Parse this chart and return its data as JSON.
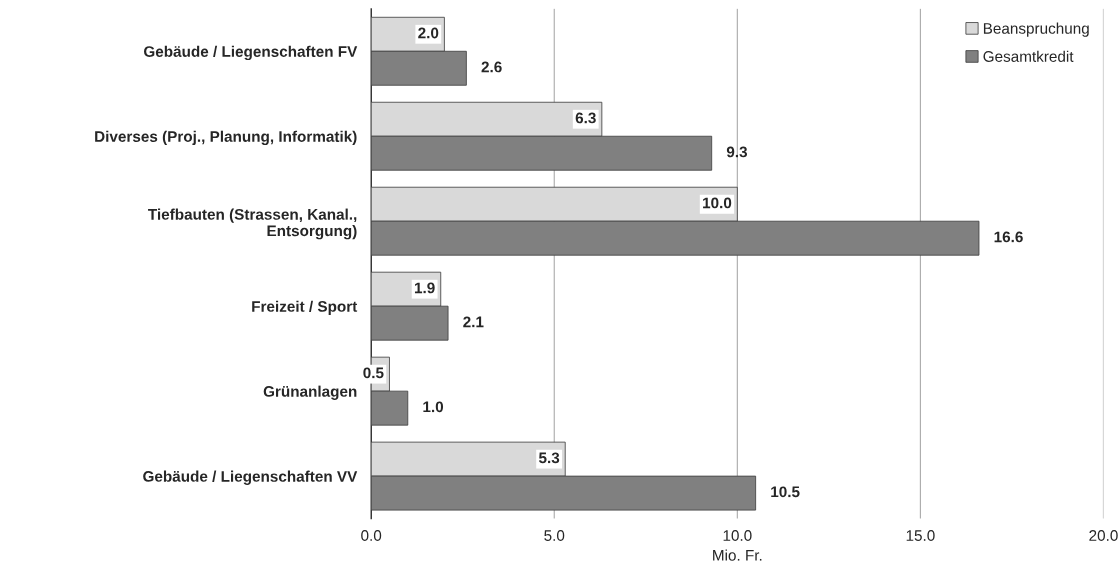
{
  "chart_data": {
    "type": "bar",
    "orientation": "horizontal",
    "xlabel": "Mio. Fr.",
    "categories": [
      "Gebäude / Liegenschaften FV",
      "Diverses (Proj., Planung, Informatik)",
      "Tiefbauten (Strassen, Kanal.,\nEntsorgung)",
      "Freizeit / Sport",
      "Grünanlagen",
      "Gebäude / Liegenschaften VV"
    ],
    "series": [
      {
        "name": "Beanspruchung",
        "color": "#d9d9d9",
        "values": [
          2.0,
          6.3,
          10.0,
          1.9,
          0.5,
          5.3
        ],
        "value_labels": [
          "2.0",
          "6.3",
          "10.0",
          "1.9",
          "0.5",
          "5.3"
        ]
      },
      {
        "name": "Gesamtkredit",
        "color": "#808080",
        "values": [
          2.6,
          9.3,
          16.6,
          2.1,
          1.0,
          10.5
        ],
        "value_labels": [
          "2.6",
          "9.3",
          "16.6",
          "2.1",
          "1.0",
          "10.5"
        ]
      }
    ],
    "xlim": [
      0,
      20
    ],
    "xticks": [
      {
        "value": 0,
        "label": "0.0"
      },
      {
        "value": 5,
        "label": "5.0"
      },
      {
        "value": 10,
        "label": "10.0"
      },
      {
        "value": 15,
        "label": "15.0"
      },
      {
        "value": 20,
        "label": "20.0"
      }
    ],
    "grid": "x",
    "legend": "top right"
  }
}
